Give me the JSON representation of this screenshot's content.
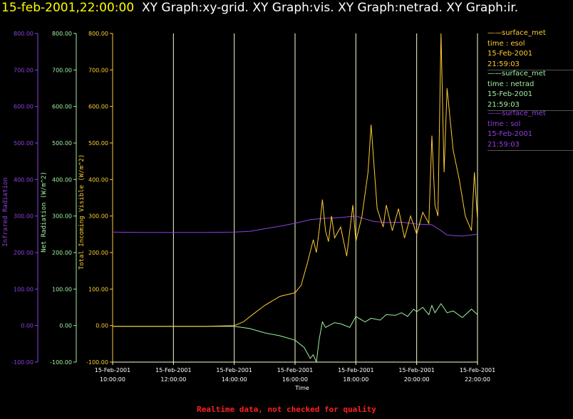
{
  "header": {
    "date": "15-feb-2001,22:00:00",
    "graphs": "XY Graph:xy-grid.  XY Graph:vis.  XY Graph:netrad.  XY Graph:ir."
  },
  "footer": "Realtime data, not checked for quality",
  "colors": {
    "ir": "#9040e0",
    "net": "#a0f0a0",
    "vis": "#ffcc33",
    "grid": "#ffffcc"
  },
  "chart_data": {
    "type": "line",
    "xlabel": "Time",
    "x_ticks": [
      {
        "date": "15-Feb-2001",
        "time": "10:00:00"
      },
      {
        "date": "15-Feb-2001",
        "time": "12:00:00"
      },
      {
        "date": "15-Feb-2001",
        "time": "14:00:00"
      },
      {
        "date": "15-Feb-2001",
        "time": "16:00:00"
      },
      {
        "date": "15-Feb-2001",
        "time": "18:00:00"
      },
      {
        "date": "15-Feb-2001",
        "time": "20:00:00"
      },
      {
        "date": "15-Feb-2001",
        "time": "22:00:00"
      }
    ],
    "xlim_hours": [
      10,
      22
    ],
    "ylim": [
      -100,
      800
    ],
    "y_ticks": [
      "-100.00",
      "0.00",
      "100.00",
      "200.00",
      "300.00",
      "400.00",
      "500.00",
      "600.00",
      "700.00",
      "800.00"
    ],
    "axes": [
      {
        "label": "Infrared Radiation"
      },
      {
        "label": "Net Radiation (W/m^2)"
      },
      {
        "label": "Total Incoming Visible (W/m^2)"
      }
    ],
    "grid": "vertical",
    "series": [
      {
        "name": "ir",
        "x": [
          8.0,
          10.0,
          11.0,
          12.0,
          13.0,
          14.0,
          14.5,
          15.0,
          15.5,
          16.0,
          16.5,
          17.0,
          17.5,
          18.0,
          18.3,
          18.6,
          19.0,
          19.5,
          20.0,
          20.5,
          20.8,
          21.0,
          21.5,
          22.0
        ],
        "y": [
          258,
          256,
          255,
          255,
          255,
          256,
          258,
          265,
          272,
          280,
          290,
          294,
          296,
          300,
          292,
          285,
          282,
          283,
          278,
          276,
          260,
          248,
          245,
          250
        ]
      },
      {
        "name": "net",
        "x": [
          8.0,
          10.0,
          12.0,
          13.0,
          14.0,
          14.5,
          15.0,
          15.5,
          16.0,
          16.3,
          16.5,
          16.6,
          16.7,
          16.8,
          16.9,
          17.0,
          17.3,
          17.5,
          17.8,
          18.0,
          18.3,
          18.5,
          18.8,
          19.0,
          19.3,
          19.5,
          19.7,
          19.9,
          20.0,
          20.2,
          20.4,
          20.5,
          20.6,
          20.8,
          21.0,
          21.2,
          21.5,
          21.8,
          22.0
        ],
        "y": [
          0,
          -2,
          -2,
          -2,
          -2,
          -8,
          -20,
          -28,
          -40,
          -60,
          -90,
          -80,
          -100,
          -35,
          10,
          -5,
          8,
          5,
          -5,
          25,
          10,
          20,
          15,
          30,
          28,
          35,
          25,
          45,
          38,
          50,
          30,
          55,
          35,
          60,
          35,
          40,
          22,
          45,
          30
        ]
      },
      {
        "name": "vis",
        "x": [
          8.0,
          10.0,
          12.0,
          13.0,
          14.0,
          14.3,
          14.6,
          15.0,
          15.5,
          16.0,
          16.2,
          16.4,
          16.6,
          16.7,
          16.8,
          16.9,
          17.0,
          17.1,
          17.2,
          17.3,
          17.5,
          17.7,
          17.9,
          18.0,
          18.2,
          18.4,
          18.5,
          18.7,
          18.9,
          19.0,
          19.2,
          19.4,
          19.6,
          19.8,
          20.0,
          20.2,
          20.4,
          20.5,
          20.6,
          20.7,
          20.8,
          20.9,
          21.0,
          21.2,
          21.4,
          21.6,
          21.8,
          21.9,
          22.0
        ],
        "y": [
          0,
          -2,
          -2,
          -2,
          0,
          10,
          30,
          55,
          80,
          90,
          110,
          170,
          235,
          200,
          265,
          345,
          260,
          230,
          300,
          240,
          270,
          190,
          330,
          230,
          300,
          420,
          550,
          320,
          270,
          330,
          260,
          320,
          240,
          300,
          250,
          310,
          280,
          520,
          330,
          300,
          800,
          420,
          650,
          480,
          400,
          300,
          260,
          420,
          290
        ]
      }
    ],
    "legend": [
      {
        "series": "surface_met",
        "var": "time : esol",
        "date": "15-Feb-2001",
        "time": "21:59:03"
      },
      {
        "series": "surface_met",
        "var": "time : netrad",
        "date": "15-Feb-2001",
        "time": "21:59:03"
      },
      {
        "series": "surface_met",
        "var": "time : sol",
        "date": "15-Feb-2001",
        "time": "21:59:03"
      }
    ]
  }
}
